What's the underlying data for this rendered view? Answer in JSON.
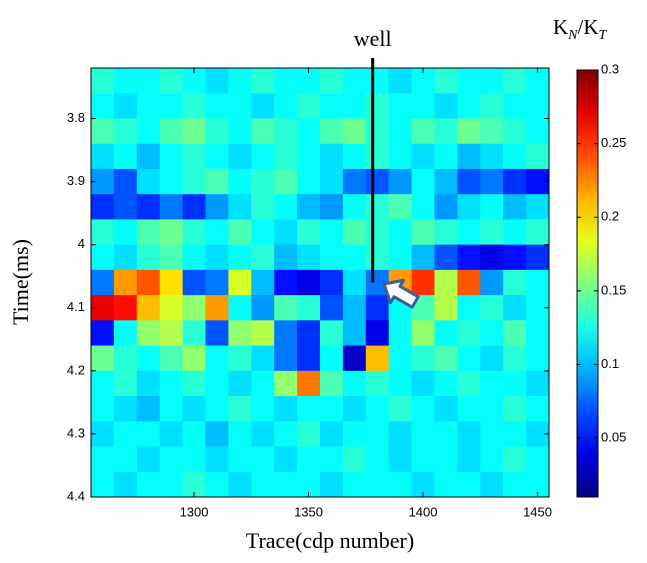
{
  "chart_data": {
    "type": "heatmap",
    "xlabel": "Trace(cdp number)",
    "ylabel": "Time(ms)",
    "colorbar_label": [
      "K",
      "N",
      "/K",
      "T"
    ],
    "x": [
      1260,
      1270,
      1280,
      1290,
      1300,
      1310,
      1320,
      1330,
      1340,
      1350,
      1360,
      1370,
      1380,
      1390,
      1400,
      1410,
      1420,
      1430,
      1440,
      1450
    ],
    "y": [
      3.74,
      3.78,
      3.82,
      3.86,
      3.9,
      3.94,
      3.98,
      4.02,
      4.06,
      4.1,
      4.14,
      4.18,
      4.22,
      4.26,
      4.3,
      4.34,
      4.38
    ],
    "values": [
      [
        0.13,
        0.12,
        0.12,
        0.13,
        0.12,
        0.11,
        0.12,
        0.13,
        0.12,
        0.12,
        0.13,
        0.12,
        0.12,
        0.11,
        0.12,
        0.13,
        0.12,
        0.12,
        0.13,
        0.12
      ],
      [
        0.12,
        0.11,
        0.12,
        0.12,
        0.13,
        0.12,
        0.12,
        0.11,
        0.12,
        0.13,
        0.12,
        0.12,
        0.13,
        0.12,
        0.12,
        0.11,
        0.12,
        0.13,
        0.12,
        0.12
      ],
      [
        0.14,
        0.13,
        0.12,
        0.14,
        0.15,
        0.13,
        0.12,
        0.14,
        0.13,
        0.12,
        0.14,
        0.15,
        0.13,
        0.12,
        0.14,
        0.13,
        0.15,
        0.14,
        0.13,
        0.12
      ],
      [
        0.11,
        0.12,
        0.1,
        0.12,
        0.13,
        0.12,
        0.11,
        0.12,
        0.13,
        0.12,
        0.11,
        0.12,
        0.13,
        0.12,
        0.11,
        0.12,
        0.1,
        0.11,
        0.12,
        0.13
      ],
      [
        0.09,
        0.07,
        0.11,
        0.12,
        0.13,
        0.14,
        0.12,
        0.13,
        0.14,
        0.12,
        0.11,
        0.08,
        0.07,
        0.09,
        0.12,
        0.1,
        0.07,
        0.08,
        0.06,
        0.05
      ],
      [
        0.06,
        0.07,
        0.06,
        0.08,
        0.06,
        0.09,
        0.11,
        0.13,
        0.12,
        0.1,
        0.09,
        0.12,
        0.13,
        0.14,
        0.12,
        0.09,
        0.11,
        0.12,
        0.1,
        0.11
      ],
      [
        0.13,
        0.12,
        0.14,
        0.15,
        0.13,
        0.12,
        0.14,
        0.12,
        0.11,
        0.13,
        0.12,
        0.14,
        0.13,
        0.12,
        0.14,
        0.13,
        0.12,
        0.13,
        0.12,
        0.13
      ],
      [
        0.12,
        0.11,
        0.13,
        0.14,
        0.12,
        0.11,
        0.12,
        0.13,
        0.1,
        0.11,
        0.12,
        0.12,
        0.13,
        0.12,
        0.1,
        0.07,
        0.05,
        0.04,
        0.05,
        0.06
      ],
      [
        0.08,
        0.22,
        0.24,
        0.2,
        0.07,
        0.08,
        0.18,
        0.1,
        0.05,
        0.04,
        0.06,
        0.11,
        0.08,
        0.22,
        0.25,
        0.17,
        0.24,
        0.09,
        0.13,
        0.12
      ],
      [
        0.27,
        0.26,
        0.21,
        0.18,
        0.16,
        0.22,
        0.12,
        0.09,
        0.14,
        0.13,
        0.07,
        0.1,
        0.06,
        0.12,
        0.14,
        0.17,
        0.12,
        0.13,
        0.11,
        0.12
      ],
      [
        0.05,
        0.12,
        0.16,
        0.17,
        0.13,
        0.07,
        0.16,
        0.17,
        0.08,
        0.06,
        0.13,
        0.1,
        0.04,
        0.12,
        0.16,
        0.12,
        0.13,
        0.12,
        0.14,
        0.12
      ],
      [
        0.15,
        0.13,
        0.12,
        0.14,
        0.16,
        0.12,
        0.13,
        0.11,
        0.08,
        0.06,
        0.12,
        0.03,
        0.21,
        0.12,
        0.13,
        0.14,
        0.12,
        0.11,
        0.13,
        0.12
      ],
      [
        0.12,
        0.13,
        0.11,
        0.12,
        0.13,
        0.12,
        0.11,
        0.12,
        0.16,
        0.23,
        0.14,
        0.12,
        0.13,
        0.12,
        0.11,
        0.12,
        0.13,
        0.12,
        0.12,
        0.11
      ],
      [
        0.12,
        0.11,
        0.1,
        0.12,
        0.11,
        0.12,
        0.13,
        0.12,
        0.11,
        0.12,
        0.12,
        0.11,
        0.12,
        0.13,
        0.12,
        0.11,
        0.12,
        0.12,
        0.13,
        0.12
      ],
      [
        0.11,
        0.12,
        0.12,
        0.11,
        0.12,
        0.1,
        0.12,
        0.11,
        0.12,
        0.13,
        0.11,
        0.12,
        0.12,
        0.11,
        0.12,
        0.12,
        0.11,
        0.12,
        0.12,
        0.11
      ],
      [
        0.12,
        0.12,
        0.11,
        0.12,
        0.12,
        0.11,
        0.12,
        0.12,
        0.11,
        0.12,
        0.12,
        0.13,
        0.12,
        0.11,
        0.12,
        0.12,
        0.11,
        0.12,
        0.13,
        0.12
      ],
      [
        0.12,
        0.11,
        0.12,
        0.12,
        0.13,
        0.12,
        0.11,
        0.12,
        0.12,
        0.12,
        0.11,
        0.12,
        0.12,
        0.12,
        0.11,
        0.12,
        0.12,
        0.11,
        0.12,
        0.12
      ]
    ],
    "xlim": [
      1255,
      1455
    ],
    "ylim": [
      3.72,
      4.4
    ],
    "xticks": [
      1300,
      1350,
      1400,
      1450
    ],
    "yticks": [
      3.8,
      3.9,
      4,
      4.1,
      4.2,
      4.3,
      4.4
    ],
    "clim": [
      0.01,
      0.3
    ],
    "cticks": [
      0.05,
      0.1,
      0.15,
      0.2,
      0.25,
      0.3
    ],
    "colormap": "jet",
    "annotations": [
      {
        "text": "well",
        "x": 1378,
        "y_end": 4.06
      }
    ]
  }
}
